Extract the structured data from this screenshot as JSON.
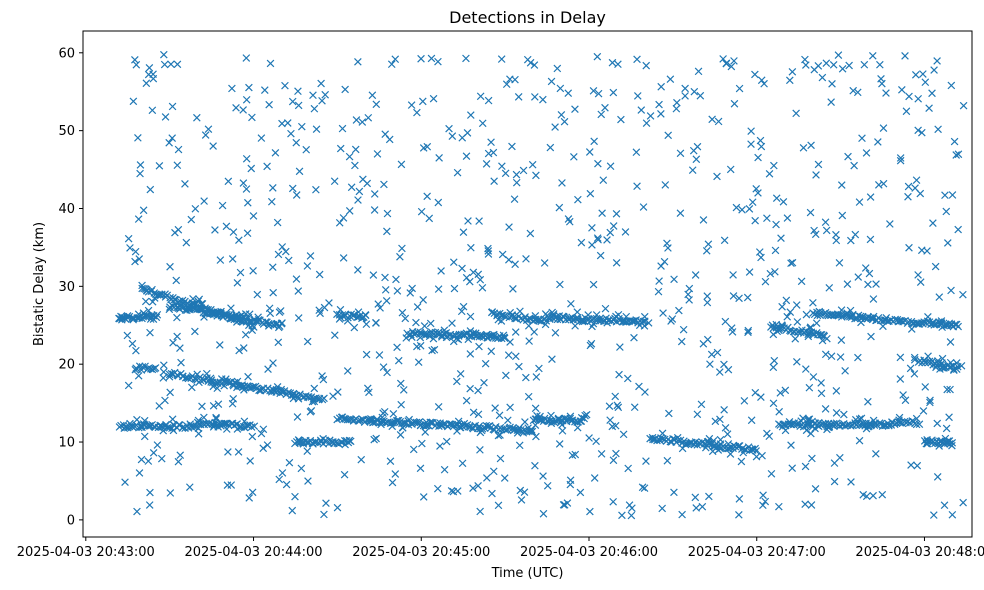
{
  "chart_data": {
    "type": "scatter",
    "title": "Detections in Delay",
    "xlabel": "Time (UTC)",
    "ylabel": "Bistatic Delay (km)",
    "marker": "x",
    "color": "#1f77b4",
    "grid": false,
    "x_ticks": [
      "2025-04-03 20:43:00",
      "2025-04-03 20:44:00",
      "2025-04-03 20:45:00",
      "2025-04-03 20:46:00",
      "2025-04-03 20:47:00",
      "2025-04-03 20:48:00"
    ],
    "y_ticks": [
      "0",
      "10",
      "20",
      "30",
      "40",
      "50",
      "60"
    ],
    "xlim": [
      "2025-04-03 20:42:59",
      "2025-04-03 20:48:17"
    ],
    "ylim": [
      -2.2,
      62.8
    ],
    "tracks": [
      {
        "x_start": "2025-04-03 20:43:20",
        "x_end": "2025-04-03 20:44:00",
        "y_start": 29.8,
        "y_end": 25.0
      },
      {
        "x_start": "2025-04-03 20:43:30",
        "x_end": "2025-04-03 20:44:10",
        "y_start": 27.5,
        "y_end": 25.0
      },
      {
        "x_start": "2025-04-03 20:43:30",
        "x_end": "2025-04-03 20:44:25",
        "y_start": 18.8,
        "y_end": 15.5
      },
      {
        "x_start": "2025-04-03 20:43:12",
        "x_end": "2025-04-03 20:43:40",
        "y_start": 12.0,
        "y_end": 12.0
      },
      {
        "x_start": "2025-04-03 20:43:40",
        "x_end": "2025-04-03 20:44:00",
        "y_start": 12.5,
        "y_end": 12.0
      },
      {
        "x_start": "2025-04-03 20:43:12",
        "x_end": "2025-04-03 20:43:25",
        "y_start": 26.0,
        "y_end": 26.0
      },
      {
        "x_start": "2025-04-03 20:43:18",
        "x_end": "2025-04-03 20:43:25",
        "y_start": 19.5,
        "y_end": 19.5
      },
      {
        "x_start": "2025-04-03 20:44:15",
        "x_end": "2025-04-03 20:44:35",
        "y_start": 10.0,
        "y_end": 10.0
      },
      {
        "x_start": "2025-04-03 20:44:30",
        "x_end": "2025-04-03 20:44:40",
        "y_start": 26.2,
        "y_end": 26.2
      },
      {
        "x_start": "2025-04-03 20:44:30",
        "x_end": "2025-04-03 20:45:40",
        "y_start": 13.0,
        "y_end": 11.5
      },
      {
        "x_start": "2025-04-03 20:44:55",
        "x_end": "2025-04-03 20:45:30",
        "y_start": 24.0,
        "y_end": 23.5
      },
      {
        "x_start": "2025-04-03 20:45:25",
        "x_end": "2025-04-03 20:45:45",
        "y_start": 26.5,
        "y_end": 25.5
      },
      {
        "x_start": "2025-04-03 20:45:45",
        "x_end": "2025-04-03 20:46:20",
        "y_start": 26.0,
        "y_end": 25.5
      },
      {
        "x_start": "2025-04-03 20:45:40",
        "x_end": "2025-04-03 20:45:58",
        "y_start": 12.8,
        "y_end": 12.8
      },
      {
        "x_start": "2025-04-03 20:46:22",
        "x_end": "2025-04-03 20:47:00",
        "y_start": 10.5,
        "y_end": 9.0
      },
      {
        "x_start": "2025-04-03 20:47:05",
        "x_end": "2025-04-03 20:47:25",
        "y_start": 25.0,
        "y_end": 23.5
      },
      {
        "x_start": "2025-04-03 20:47:08",
        "x_end": "2025-04-03 20:47:40",
        "y_start": 12.2,
        "y_end": 12.2
      },
      {
        "x_start": "2025-04-03 20:47:20",
        "x_end": "2025-04-03 20:48:12",
        "y_start": 26.5,
        "y_end": 25.0
      },
      {
        "x_start": "2025-04-03 20:47:40",
        "x_end": "2025-04-03 20:47:58",
        "y_start": 12.2,
        "y_end": 12.5
      },
      {
        "x_start": "2025-04-03 20:47:58",
        "x_end": "2025-04-03 20:48:12",
        "y_start": 20.5,
        "y_end": 19.5
      },
      {
        "x_start": "2025-04-03 20:48:00",
        "x_end": "2025-04-03 20:48:10",
        "y_start": 10.0,
        "y_end": 10.0
      }
    ],
    "scatter_range": {
      "x_start": "2025-04-03 20:43:14",
      "x_end": "2025-04-03 20:48:14",
      "y_min": 0.5,
      "y_max": 59.8
    }
  }
}
